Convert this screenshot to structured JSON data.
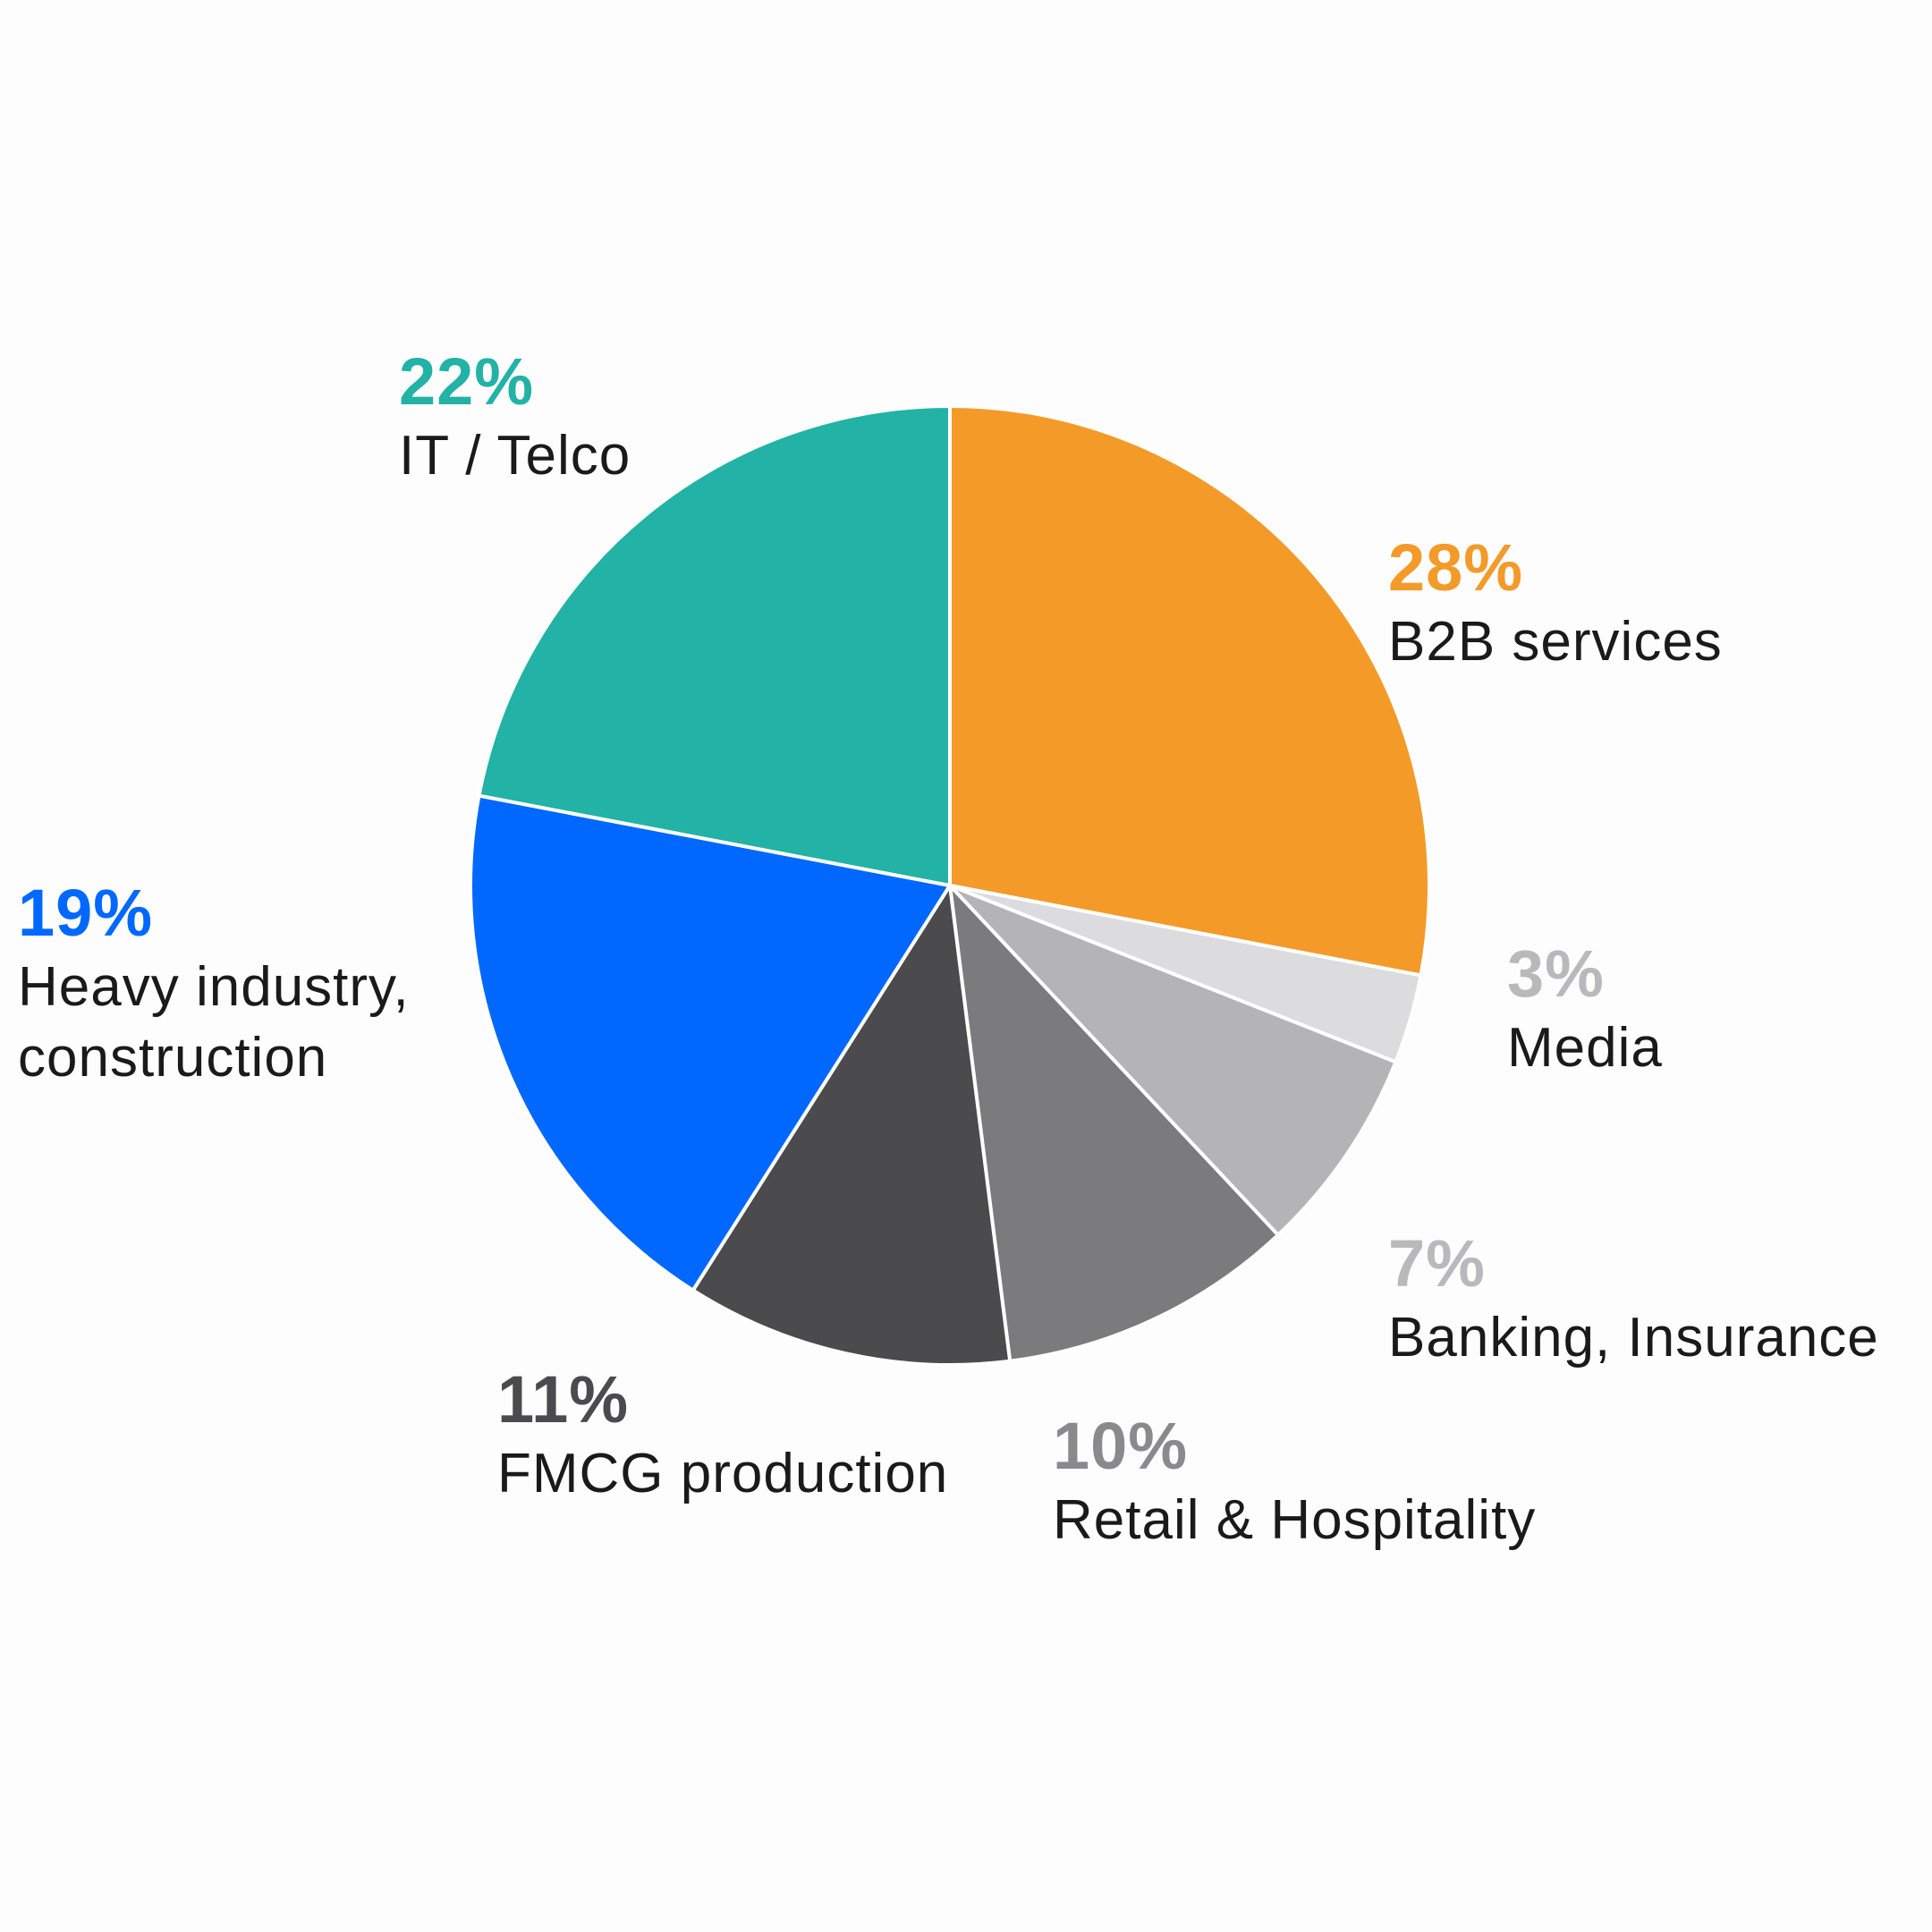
{
  "chart_data": {
    "type": "pie",
    "slices": [
      {
        "label": "B2B services",
        "pct_label": "28%",
        "value": 28,
        "color": "#f49a29"
      },
      {
        "label": "Media",
        "pct_label": "3%",
        "value": 3,
        "color": "#dcdcde",
        "pct_color": "#b9b9bc"
      },
      {
        "label": "Banking, Insurance",
        "pct_label": "7%",
        "value": 7,
        "color": "#b4b3b6",
        "pct_color": "#b9b9bc"
      },
      {
        "label": "Retail & Hospitality",
        "pct_label": "10%",
        "value": 10,
        "color": "#7b7a7d",
        "pct_color": "#8a898c"
      },
      {
        "label": "FMCG production",
        "pct_label": "11%",
        "value": 11,
        "color": "#4b4b4d",
        "pct_color": "#4b4b4d"
      },
      {
        "label": "Heavy industry,\nconstruction",
        "pct_label": "19%",
        "value": 19,
        "color": "#0068ff",
        "pct_color": "#0068ff"
      },
      {
        "label": "IT / Telco",
        "pct_label": "22%",
        "value": 22,
        "color": "#22b2a6",
        "pct_color": "#22b2a6"
      }
    ]
  }
}
